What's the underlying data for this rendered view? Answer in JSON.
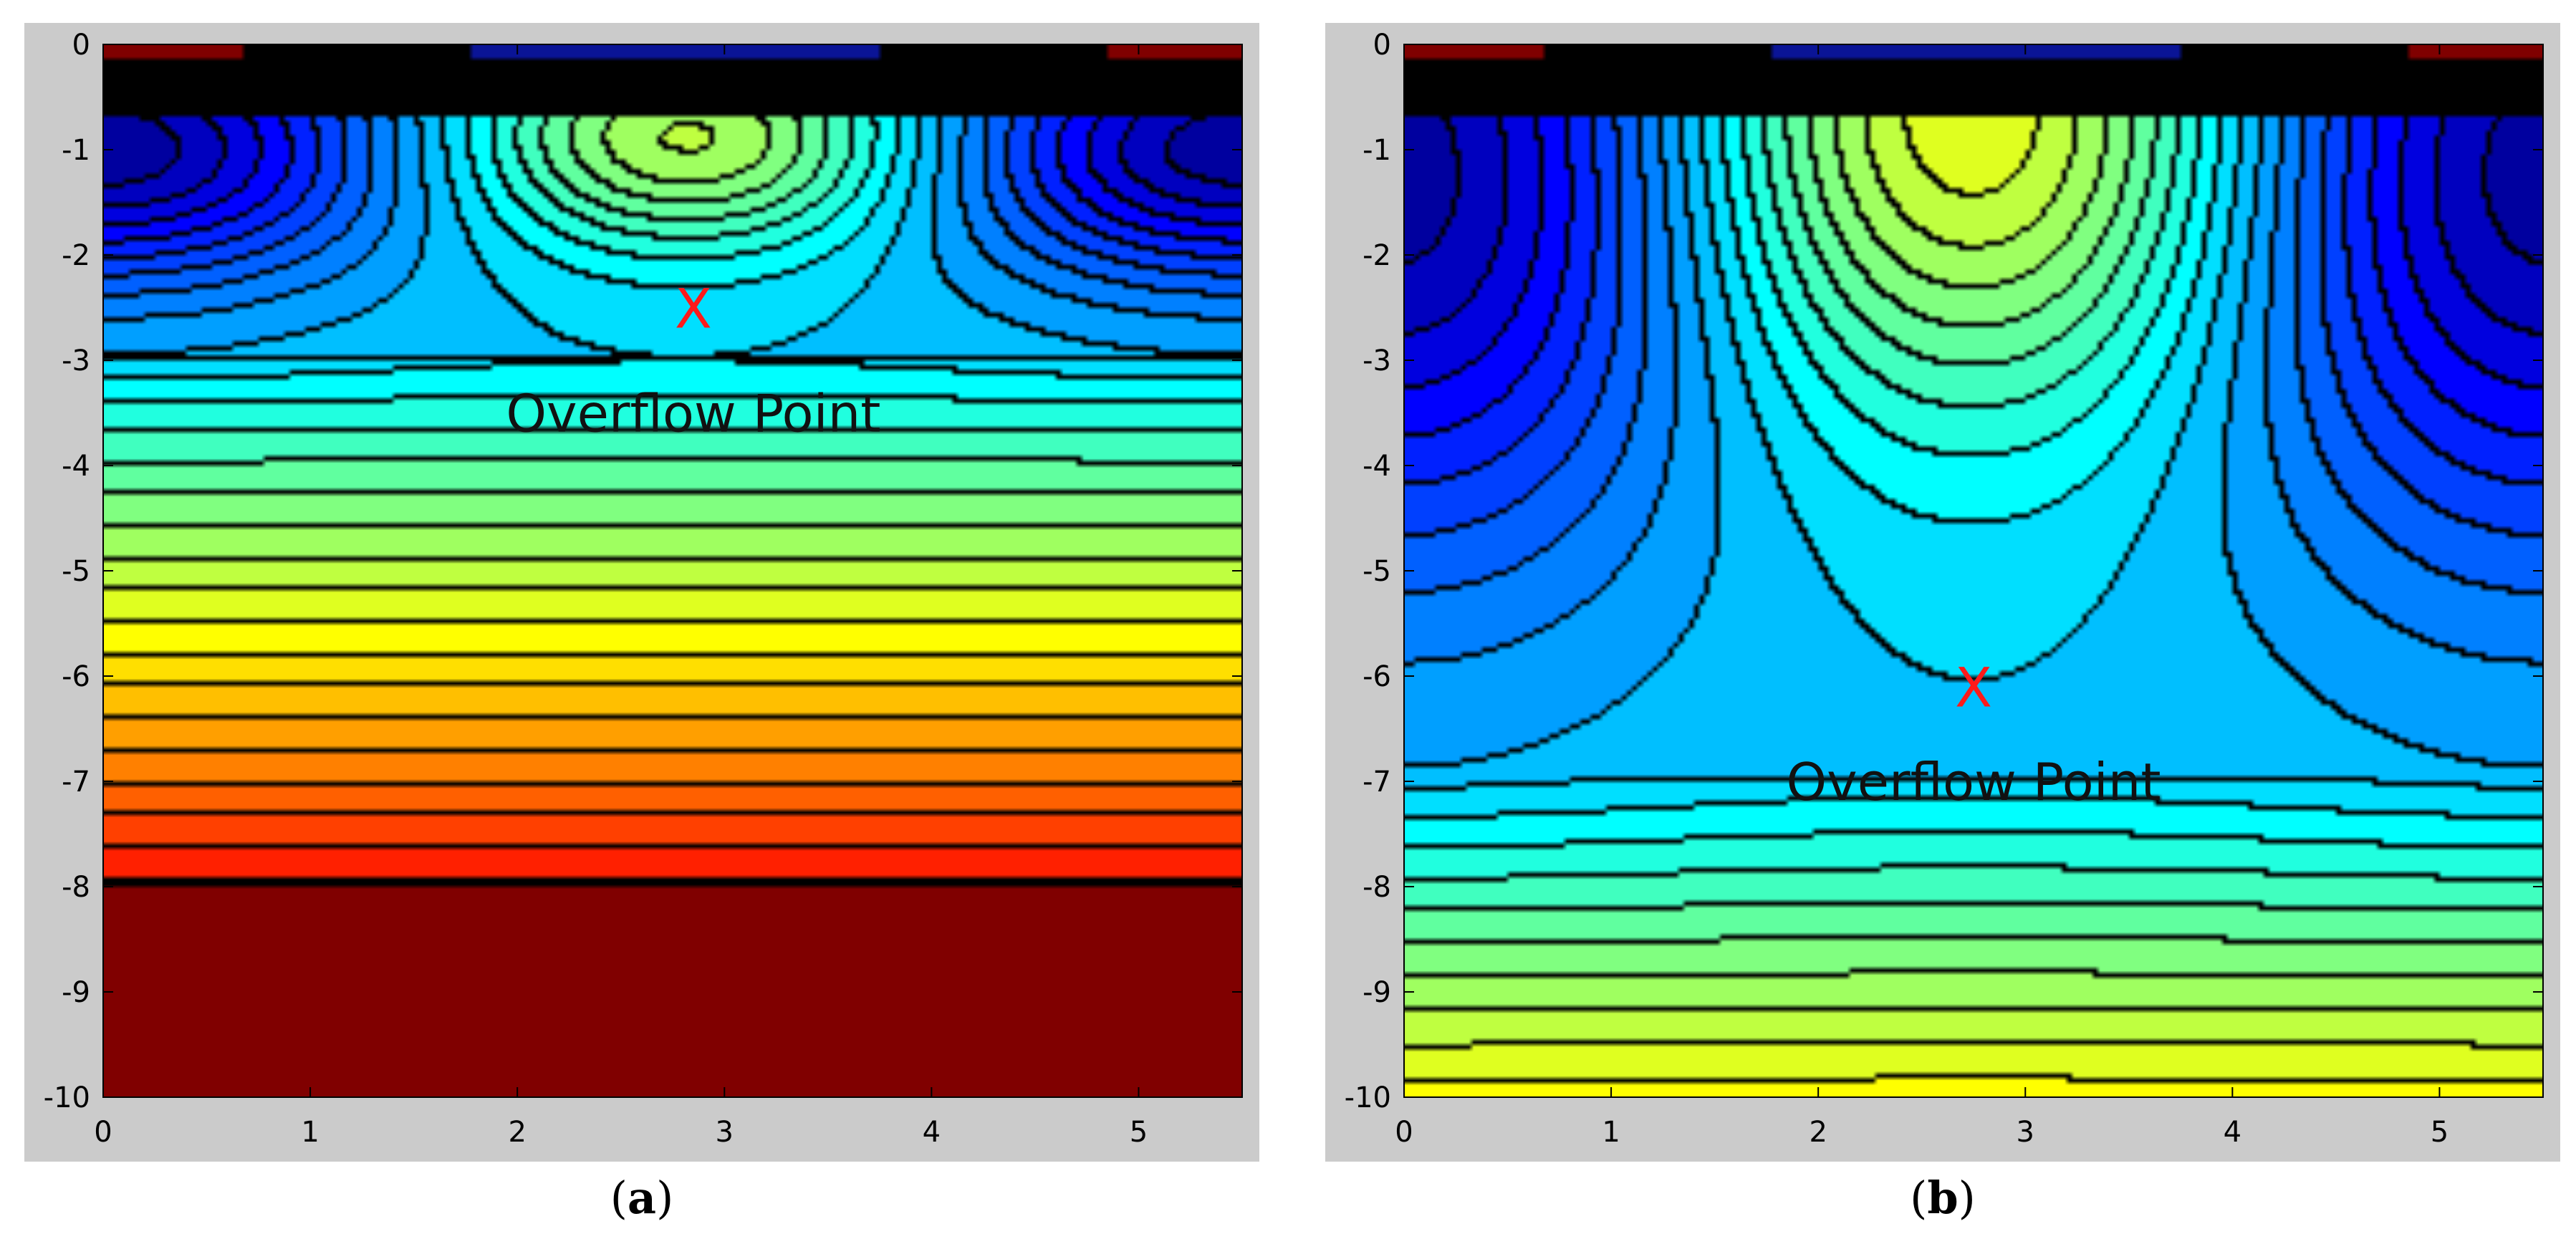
{
  "colors": {
    "panel_background": "#cbcbcb",
    "contour_line": "#000000",
    "marker": "#ff1a1a",
    "colormap": "jet"
  },
  "chart_data": [
    {
      "type": "heatmap",
      "subtype": "filled-contour",
      "panel_label": "a",
      "caption": {
        "open": "(",
        "letter": "a",
        "close": ")"
      },
      "xlim": [
        0,
        5.5
      ],
      "ylim": [
        -10,
        0
      ],
      "x_ticks": [
        0,
        1,
        2,
        3,
        4,
        5
      ],
      "y_ticks": [
        0,
        -1,
        -2,
        -3,
        -4,
        -5,
        -6,
        -7,
        -8,
        -9,
        -10
      ],
      "x_tick_labels": [
        "0",
        "1",
        "2",
        "3",
        "4",
        "5"
      ],
      "y_tick_labels": [
        "0",
        "-1",
        "-2",
        "-3",
        "-4",
        "-5",
        "-6",
        "-7",
        "-8",
        "-9",
        "-10"
      ],
      "grid": false,
      "surface_layer_bottom": -0.7,
      "bulb": {
        "center_x": 2.85,
        "top_y": -0.65,
        "bottom_y": -2.9,
        "half_width": 1.2
      },
      "lobe_left": {
        "center_x": 0.0,
        "depth": 2.6,
        "half_width": 1.7
      },
      "lobe_right": {
        "center_x": 5.5,
        "depth": 2.6,
        "half_width": 1.7
      },
      "flat_band_range": [
        -3.0,
        -8.0
      ],
      "deep_region_top": -8.0,
      "marker": {
        "symbol": "X",
        "x": 2.85,
        "y": -2.5
      },
      "annotation": {
        "text": "Overflow Point",
        "x": 2.85,
        "y": -3.5
      }
    },
    {
      "type": "heatmap",
      "subtype": "filled-contour",
      "panel_label": "b",
      "caption": {
        "open": "(",
        "letter": "b",
        "close": ")"
      },
      "xlim": [
        0,
        5.5
      ],
      "ylim": [
        -10,
        0
      ],
      "x_ticks": [
        0,
        1,
        2,
        3,
        4,
        5
      ],
      "y_ticks": [
        0,
        -1,
        -2,
        -3,
        -4,
        -5,
        -6,
        -7,
        -8,
        -9,
        -10
      ],
      "x_tick_labels": [
        "0",
        "1",
        "2",
        "3",
        "4",
        "5"
      ],
      "y_tick_labels": [
        "0",
        "-1",
        "-2",
        "-3",
        "-4",
        "-5",
        "-6",
        "-7",
        "-8",
        "-9",
        "-10"
      ],
      "grid": false,
      "surface_layer_bottom": -0.7,
      "bulb": {
        "center_x": 2.75,
        "top_y": -0.4,
        "bottom_y": -5.2,
        "half_width": 1.6
      },
      "lobe_left": {
        "center_x": 0.0,
        "depth": 6.6,
        "half_width": 1.7
      },
      "lobe_right": {
        "center_x": 5.5,
        "depth": 6.6,
        "half_width": 1.7
      },
      "flat_band_range": [
        -7.0,
        -10.0
      ],
      "deep_region_top": null,
      "marker": {
        "symbol": "X",
        "x": 2.75,
        "y": -6.1
      },
      "annotation": {
        "text": "Overflow Point",
        "x": 2.75,
        "y": -7.0
      }
    }
  ]
}
